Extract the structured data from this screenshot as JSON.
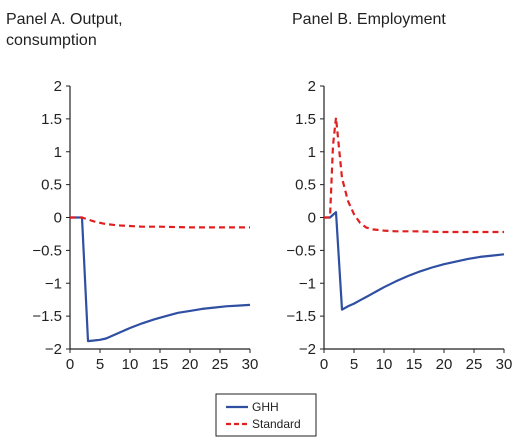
{
  "chart_data": [
    {
      "type": "line",
      "title_lines": [
        "Panel A. Output,",
        "consumption"
      ],
      "xlabel": "",
      "ylabel": "",
      "xlim": [
        0,
        30
      ],
      "ylim": [
        -2,
        2
      ],
      "x_ticks": [
        0,
        5,
        10,
        15,
        20,
        25,
        30
      ],
      "y_ticks": [
        -2,
        -1.5,
        -1,
        -0.5,
        0,
        0.5,
        1,
        1.5,
        2
      ],
      "y_tick_labels": [
        "−2",
        "−1.5",
        "−1",
        "−0.5",
        "0",
        "0.5",
        "1",
        "1.5",
        "2"
      ],
      "grid": false,
      "series": [
        {
          "name": "GHH",
          "color": "#2f4fa2",
          "style": "solid",
          "x": [
            0,
            1,
            2,
            3,
            4,
            5,
            6,
            7,
            8,
            9,
            10,
            12,
            14,
            16,
            18,
            20,
            22,
            24,
            26,
            28,
            30
          ],
          "y": [
            0,
            0,
            0,
            -1.88,
            -1.87,
            -1.86,
            -1.84,
            -1.8,
            -1.76,
            -1.72,
            -1.68,
            -1.61,
            -1.55,
            -1.5,
            -1.45,
            -1.42,
            -1.39,
            -1.37,
            -1.35,
            -1.34,
            -1.33
          ]
        },
        {
          "name": "Standard",
          "color": "#e02020",
          "style": "dashed",
          "x": [
            0,
            1,
            2,
            3,
            4,
            5,
            6,
            7,
            8,
            10,
            12,
            15,
            20,
            25,
            30
          ],
          "y": [
            0,
            0,
            0,
            -0.03,
            -0.06,
            -0.08,
            -0.1,
            -0.11,
            -0.12,
            -0.13,
            -0.14,
            -0.14,
            -0.15,
            -0.15,
            -0.15
          ]
        }
      ]
    },
    {
      "type": "line",
      "title_lines": [
        "Panel B. Employment"
      ],
      "xlabel": "",
      "ylabel": "",
      "xlim": [
        0,
        30
      ],
      "ylim": [
        -2,
        2
      ],
      "x_ticks": [
        0,
        5,
        10,
        15,
        20,
        25,
        30
      ],
      "y_ticks": [
        -2,
        -1.5,
        -1,
        -0.5,
        0,
        0.5,
        1,
        1.5,
        2
      ],
      "y_tick_labels": [
        "−2",
        "−1.5",
        "−1",
        "−0.5",
        "0",
        "0.5",
        "1",
        "1.5",
        "2"
      ],
      "grid": false,
      "series": [
        {
          "name": "GHH",
          "color": "#2f4fa2",
          "style": "solid",
          "x": [
            0,
            1,
            2,
            3,
            4,
            5,
            6,
            7,
            8,
            9,
            10,
            12,
            14,
            16,
            18,
            20,
            22,
            24,
            26,
            28,
            30
          ],
          "y": [
            0,
            0,
            0.08,
            -1.4,
            -1.35,
            -1.31,
            -1.26,
            -1.21,
            -1.16,
            -1.11,
            -1.06,
            -0.97,
            -0.89,
            -0.82,
            -0.76,
            -0.71,
            -0.67,
            -0.63,
            -0.6,
            -0.58,
            -0.56
          ]
        },
        {
          "name": "Standard",
          "color": "#e02020",
          "style": "dashed",
          "x": [
            0,
            1,
            1.5,
            2,
            3,
            4,
            5,
            6,
            7,
            8,
            10,
            12,
            15,
            20,
            25,
            30
          ],
          "y": [
            0,
            0,
            1.1,
            1.52,
            0.6,
            0.25,
            0.05,
            -0.08,
            -0.15,
            -0.18,
            -0.2,
            -0.21,
            -0.21,
            -0.22,
            -0.22,
            -0.22
          ]
        }
      ]
    }
  ],
  "legend": {
    "placement": "bottom-center",
    "entries": [
      {
        "label": "GHH",
        "color": "#2f4fa2",
        "style": "solid"
      },
      {
        "label": "Standard",
        "color": "#e02020",
        "style": "dashed"
      }
    ]
  }
}
